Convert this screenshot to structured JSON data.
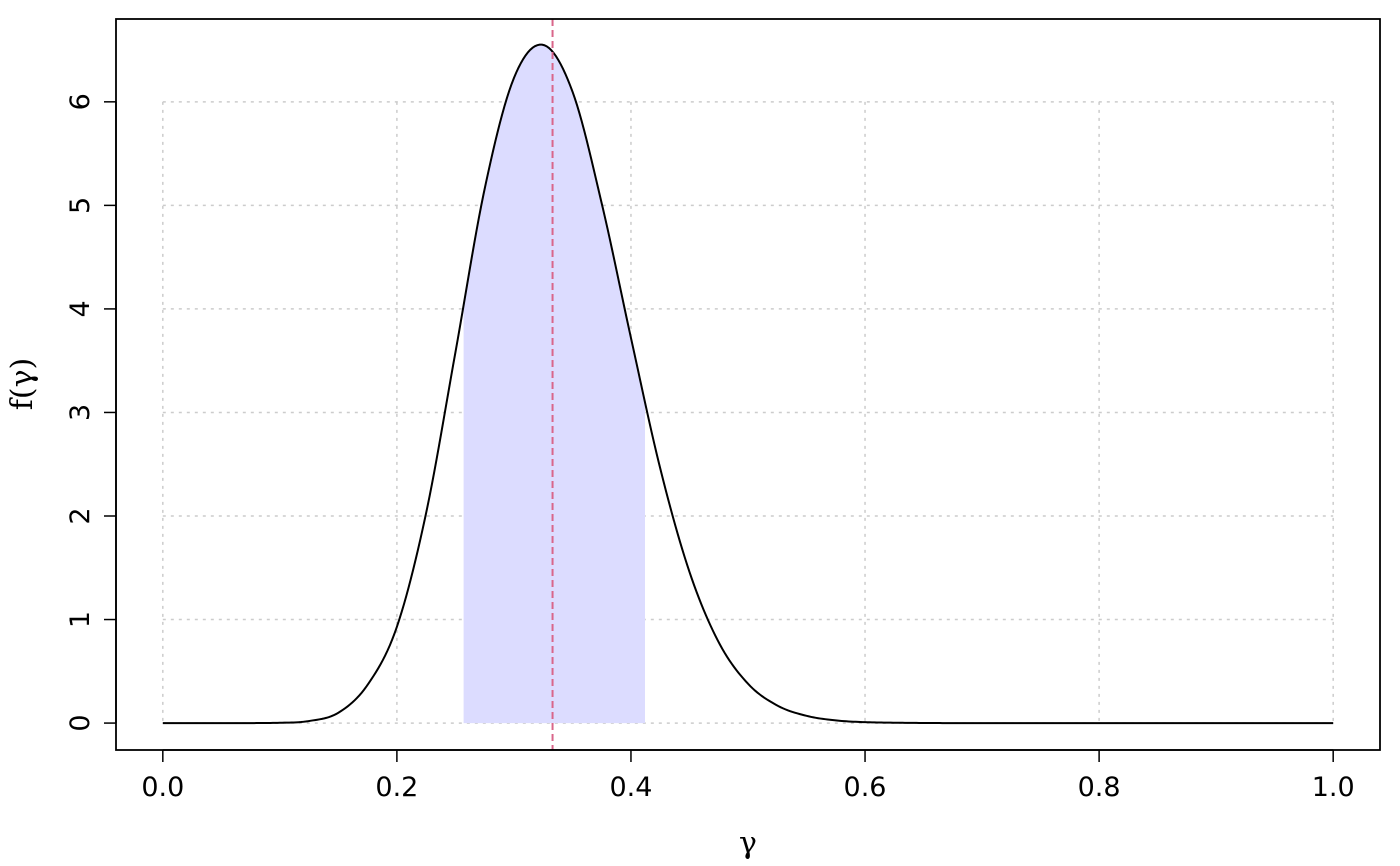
{
  "chart_data": {
    "type": "area",
    "title": "",
    "xlabel": "γ",
    "ylabel": "f(γ)",
    "xlim": [
      -0.04,
      1.04
    ],
    "ylim": [
      -0.26,
      6.8
    ],
    "x_ticks": [
      0.0,
      0.2,
      0.4,
      0.6,
      0.8,
      1.0
    ],
    "x_tick_labels": [
      "0.0",
      "0.2",
      "0.4",
      "0.6",
      "0.8",
      "1.0"
    ],
    "y_ticks": [
      0,
      1,
      2,
      3,
      4,
      5,
      6
    ],
    "y_tick_labels": [
      "0",
      "1",
      "2",
      "3",
      "4",
      "5",
      "6"
    ],
    "grid": true,
    "series": [
      {
        "kind": "density_curve",
        "color": "#000000",
        "x": [
          0.0,
          0.05,
          0.1,
          0.125,
          0.15,
          0.175,
          0.2,
          0.225,
          0.25,
          0.275,
          0.3,
          0.325,
          0.35,
          0.375,
          0.4,
          0.425,
          0.45,
          0.475,
          0.5,
          0.525,
          0.55,
          0.575,
          0.6,
          0.65,
          0.7,
          0.8,
          0.9,
          1.0
        ],
        "y": [
          0.0,
          0.0,
          0.003,
          0.02,
          0.1,
          0.37,
          0.93,
          2.03,
          3.58,
          5.16,
          6.23,
          6.55,
          6.1,
          5.02,
          3.72,
          2.46,
          1.46,
          0.78,
          0.38,
          0.17,
          0.07,
          0.026,
          0.009,
          0.001,
          0.0,
          0.0,
          0.0,
          0.0
        ]
      }
    ],
    "shaded_interval": {
      "from": 0.257,
      "to": 0.412,
      "color": "#dcdcff"
    },
    "reference_line": {
      "x": 0.333,
      "color": "#d9668a",
      "style": "dashed"
    }
  }
}
